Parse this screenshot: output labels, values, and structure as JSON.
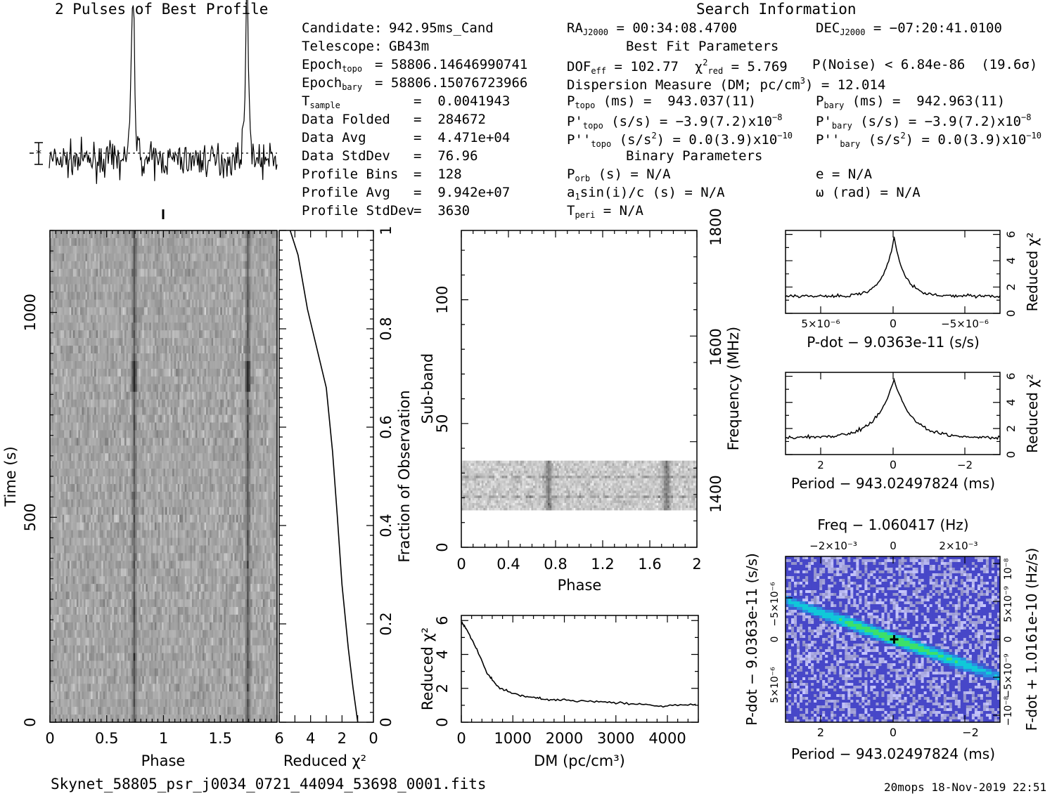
{
  "header": {
    "profile_title": "2 Pulses of Best Profile",
    "search_title": "Search Information",
    "best_fit_title": "Best Fit Parameters",
    "binary_title": "Binary Parameters"
  },
  "left_info": [
    [
      "Candidate:",
      "942.95ms_Cand"
    ],
    [
      "Telescope:",
      "GB43m"
    ],
    [
      "Epoch_topo",
      "= 58806.14646990741"
    ],
    [
      "Epoch_bary",
      "= 58806.15076723966"
    ],
    [
      "T_sample",
      "=  0.0041943"
    ],
    [
      "Data Folded",
      "=  284672"
    ],
    [
      "Data Avg",
      "=  4.471e+04"
    ],
    [
      "Data StdDev",
      "=  76.96"
    ],
    [
      "Profile Bins",
      "=  128"
    ],
    [
      "Profile Avg",
      "=  9.942e+07"
    ],
    [
      "Profile StdDev",
      "=  3630"
    ]
  ],
  "mid_info": {
    "ra": "RA_J2000 = 00:34:08.4700",
    "dec": "DEC_J2000 = -07:20:41.0100",
    "dof": "DOF_eff = 102.77  χ²_red = 5.769",
    "pnoise": "P(Noise) < 6.84e-86  (19.6σ)",
    "dm": "Dispersion Measure (DM; pc/cm³) = 12.014",
    "ptopo": "P_topo (ms) =  943.037(11)",
    "pbary": "P_bary (ms) =  942.963(11)",
    "pdtopo": "P'_topo (s/s) = -3.9(7.2)x10⁻⁸",
    "pdbary": "P'_bary (s/s) = -3.9(7.2)x10⁻⁸",
    "pddtopo": "P''_topo (s/s²) = 0.0(3.9)x10⁻¹⁰",
    "pddbary": "P''_bary (s/s²) = 0.0(3.9)x10⁻¹⁰",
    "porb": "P_orb (s) = N/A",
    "ecc": "e = N/A",
    "a1": "a₁sin(i)/c (s) = N/A",
    "omega": "ω (rad) = N/A",
    "tperi": "T_peri = N/A"
  },
  "footer": {
    "filename": "Skynet_58805_psr_j0034_0721_44094_53698_0001.fits",
    "stamp": "20mops 18-Nov-2019 22:51"
  },
  "chart_data": [
    {
      "id": "profile",
      "type": "line",
      "title": "2 Pulses of Best Profile",
      "x_range": [
        0,
        2
      ],
      "peaks_phase": [
        0.735,
        1.735
      ],
      "bins": 128
    },
    {
      "id": "time-phase",
      "type": "heatmap",
      "xlabel": "Phase",
      "ylabel": "Time (s)",
      "xlim": [
        0,
        2
      ],
      "ylim": [
        0,
        1200
      ],
      "x_ticks": [
        "0",
        "0.5",
        "1",
        "1.5"
      ],
      "y_ticks": [
        "0",
        "500",
        "1000"
      ]
    },
    {
      "id": "reduced-chi2-vs-fraction",
      "type": "line",
      "xlabel": "Reduced χ²",
      "ylabel": "Fraction of Observation",
      "xlim": [
        6,
        0
      ],
      "ylim": [
        0,
        1
      ],
      "x_ticks": [
        "6",
        "4",
        "2",
        "0"
      ],
      "y_ticks": [
        "0",
        "0.2",
        "0.4",
        "0.6",
        "0.8",
        "1"
      ],
      "x": [
        1.0,
        1.3,
        1.6,
        2.0,
        2.3,
        2.6,
        3.0,
        3.6,
        4.2,
        4.8,
        5.3
      ],
      "y": [
        0.0,
        0.07,
        0.15,
        0.28,
        0.42,
        0.55,
        0.68,
        0.76,
        0.84,
        0.95,
        1.0
      ]
    },
    {
      "id": "subband-phase",
      "type": "heatmap",
      "xlabel": "Phase",
      "ylabel": "Sub-band",
      "y2label": "Frequency (MHz)",
      "xlim": [
        0,
        2
      ],
      "ylim": [
        0,
        128
      ],
      "x_ticks": [
        "0",
        "0.4",
        "0.8",
        "1.2",
        "1.6",
        "2"
      ],
      "y_ticks": [
        "0",
        "50",
        "100"
      ],
      "y2_ticks": [
        "1400",
        "1600",
        "1800"
      ],
      "filled_subbands": [
        15,
        35
      ]
    },
    {
      "id": "dm-curve",
      "type": "line",
      "xlabel": "DM (pc/cm³)",
      "ylabel": "Reduced χ²",
      "xlim": [
        0,
        4600
      ],
      "ylim": [
        0,
        6.3
      ],
      "x_ticks": [
        "0",
        "1000",
        "2000",
        "3000",
        "4000"
      ],
      "y_ticks": [
        "0",
        "2",
        "4",
        "6"
      ],
      "x": [
        0,
        100,
        300,
        500,
        700,
        1000,
        1300,
        1600,
        2000,
        2500,
        3000,
        3500,
        4000,
        4600
      ],
      "y": [
        5.9,
        5.5,
        4.3,
        2.9,
        2.1,
        1.7,
        1.5,
        1.35,
        1.3,
        1.25,
        1.15,
        1.05,
        0.95,
        1.05
      ]
    },
    {
      "id": "pdot-curve",
      "type": "line",
      "xlabel": "P-dot − 9.0363e-11 (s/s)",
      "ylabel": "Reduced χ²",
      "x_ticks": [
        "5×10⁻⁶",
        "0",
        "−5×10⁻⁶"
      ],
      "y_ticks": [
        "0",
        "2",
        "4",
        "6"
      ],
      "ylim": [
        0,
        6.3
      ],
      "peak": 5.77,
      "baseline": 1.3
    },
    {
      "id": "period-curve",
      "type": "line",
      "xlabel": "Period − 943.02497824 (ms)",
      "ylabel": "Reduced χ²",
      "x_ticks": [
        "2",
        "0",
        "−2"
      ],
      "y_ticks": [
        "0",
        "2",
        "4",
        "6"
      ],
      "ylim": [
        0,
        6.3
      ],
      "peak": 5.77,
      "baseline": 1.3
    },
    {
      "id": "p-pdot-plane",
      "type": "heatmap",
      "title": "Freq − 1.060417 (Hz)",
      "xlabel": "Period − 943.02497824 (ms)",
      "ylabel": "P-dot − 9.0363e-11 (s/s)",
      "y2label": "F-dot + 1.0161e-10 (Hz/s)",
      "top_ticks": [
        "−2×10⁻³",
        "0",
        "2×10⁻³"
      ],
      "x_ticks": [
        "2",
        "0",
        "−2"
      ],
      "y_ticks": [
        "5×10⁻⁶",
        "0",
        "−5×10⁻⁶"
      ],
      "y2_ticks": [
        "−10⁻⁸",
        "−5×10⁻⁹",
        "0",
        "5×10⁻⁹",
        "10⁻⁸"
      ]
    }
  ],
  "colors": {
    "ink": "#000000",
    "heatmap_low": "#ffffff",
    "heatmap_high": "#000000",
    "ppdot_low": "#4040c8",
    "ppdot_mid": "#00c8d0",
    "ppdot_high": "#40e060"
  }
}
